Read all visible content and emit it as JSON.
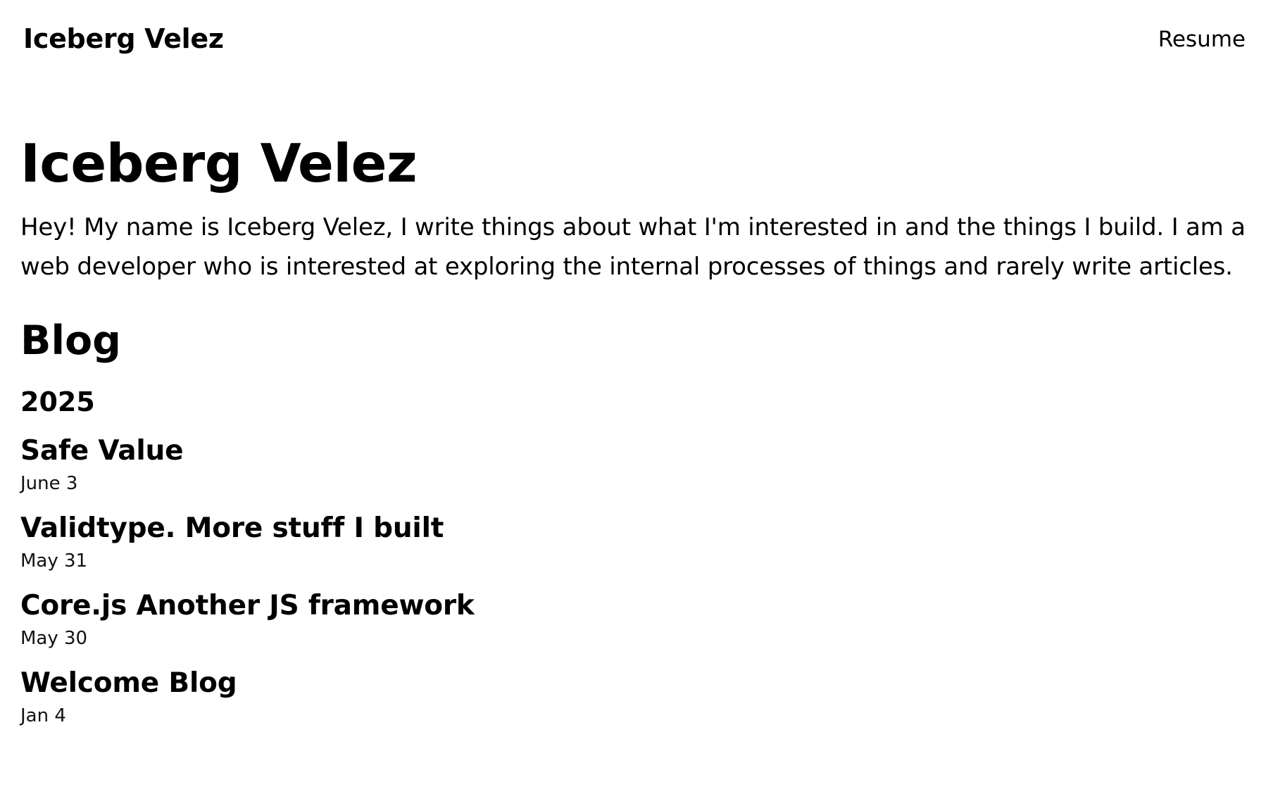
{
  "header": {
    "brand": "Iceberg Velez",
    "nav_resume": "Resume"
  },
  "hero": {
    "title": "Iceberg Velez",
    "intro": "Hey! My name is Iceberg Velez, I write things about what I'm interested in and the things I build. I am a web developer who is interested at exploring the internal processes of things and rarely write articles."
  },
  "blog": {
    "heading": "Blog",
    "year": "2025",
    "posts": [
      {
        "title": "Safe Value",
        "date": "June 3"
      },
      {
        "title": "Validtype. More stuff I built",
        "date": "May 31"
      },
      {
        "title": "Core.js Another JS framework",
        "date": "May 30"
      },
      {
        "title": "Welcome Blog",
        "date": "Jan 4"
      }
    ]
  }
}
